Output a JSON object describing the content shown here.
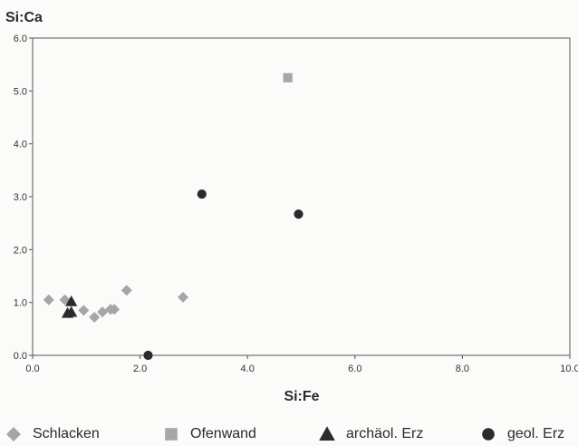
{
  "chart_data": {
    "type": "scatter",
    "title": "",
    "xlabel": "Si:Fe",
    "ylabel": "Si:Ca",
    "xlim": [
      0,
      10
    ],
    "ylim": [
      0,
      6
    ],
    "x_ticks": [
      "0.0",
      "2.0",
      "4.0",
      "6.0",
      "8.0",
      "10.0"
    ],
    "y_ticks": [
      "0.0",
      "1.0",
      "2.0",
      "3.0",
      "4.0",
      "5.0",
      "6.0"
    ],
    "grid": false,
    "legend_position": "bottom",
    "series": [
      {
        "name": "Schlacken",
        "marker": "diamond",
        "color": "#a6a6a6",
        "points": [
          [
            0.3,
            1.05
          ],
          [
            0.6,
            1.05
          ],
          [
            0.95,
            0.85
          ],
          [
            1.15,
            0.72
          ],
          [
            1.3,
            0.82
          ],
          [
            1.45,
            0.87
          ],
          [
            1.52,
            0.87
          ],
          [
            1.75,
            1.23
          ],
          [
            2.8,
            1.1
          ]
        ]
      },
      {
        "name": "Ofenwand",
        "marker": "square",
        "color": "#a6a6a6",
        "points": [
          [
            4.75,
            5.25
          ]
        ]
      },
      {
        "name": "archäol. Erz",
        "marker": "triangle",
        "color": "#2b2b2b",
        "points": [
          [
            0.65,
            0.8
          ],
          [
            0.72,
            1.02
          ],
          [
            0.72,
            0.82
          ]
        ]
      },
      {
        "name": "geol. Erz",
        "marker": "circle",
        "color": "#2b2b2b",
        "points": [
          [
            2.15,
            0.0
          ],
          [
            3.15,
            3.05
          ],
          [
            4.95,
            2.67
          ]
        ]
      }
    ]
  }
}
